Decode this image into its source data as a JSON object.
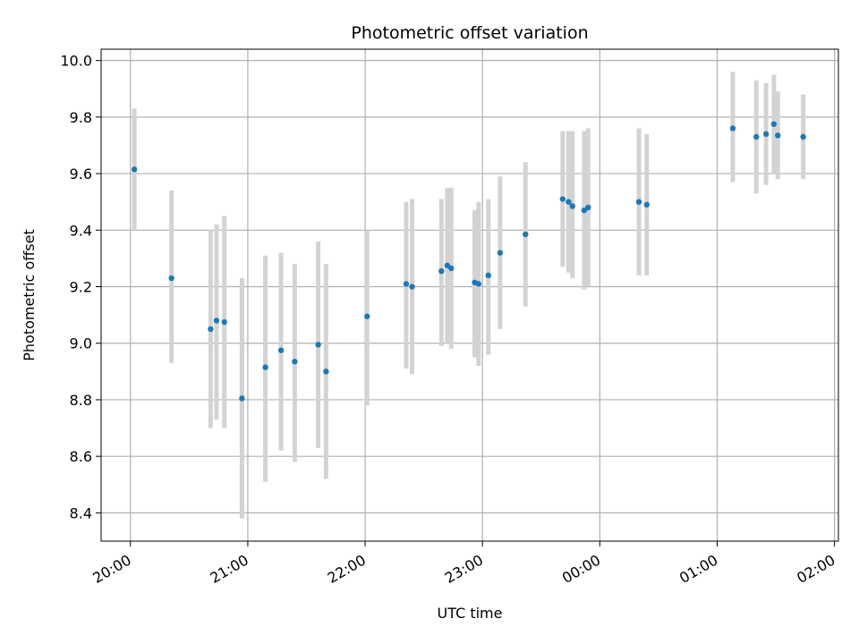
{
  "chart_data": {
    "type": "scatter",
    "title": "Photometric offset variation",
    "xlabel": "UTC time",
    "ylabel": "Photometric offset",
    "grid": true,
    "x_ticks": [
      "20:00",
      "21:00",
      "22:00",
      "23:00",
      "00:00",
      "01:00",
      "02:00"
    ],
    "x_tick_minutes": [
      0,
      60,
      120,
      180,
      240,
      300,
      360
    ],
    "xlim_minutes": [
      -15,
      362
    ],
    "y_ticks": [
      "8.4",
      "8.6",
      "8.8",
      "9.0",
      "9.2",
      "9.4",
      "9.6",
      "9.8",
      "10.0"
    ],
    "y_tick_values": [
      8.4,
      8.6,
      8.8,
      9.0,
      9.2,
      9.4,
      9.6,
      9.8,
      10.0
    ],
    "ylim": [
      8.3,
      10.04
    ],
    "colors": {
      "points": "#1f77b4",
      "errorbars": "#d3d3d3",
      "grid": "#b0b0b0"
    },
    "series": [
      {
        "points": [
          {
            "t": "20:02",
            "y": 9.615,
            "lo": 9.4,
            "hi": 9.83
          },
          {
            "t": "20:21",
            "y": 9.23,
            "lo": 8.93,
            "hi": 9.54
          },
          {
            "t": "20:41",
            "y": 9.05,
            "lo": 8.7,
            "hi": 9.4
          },
          {
            "t": "20:44",
            "y": 9.08,
            "lo": 8.73,
            "hi": 9.42
          },
          {
            "t": "20:48",
            "y": 9.075,
            "lo": 8.7,
            "hi": 9.45
          },
          {
            "t": "20:57",
            "y": 8.805,
            "lo": 8.38,
            "hi": 9.23
          },
          {
            "t": "21:09",
            "y": 8.915,
            "lo": 8.51,
            "hi": 9.31
          },
          {
            "t": "21:17",
            "y": 8.975,
            "lo": 8.62,
            "hi": 9.32
          },
          {
            "t": "21:24",
            "y": 8.935,
            "lo": 8.58,
            "hi": 9.28
          },
          {
            "t": "21:36",
            "y": 8.995,
            "lo": 8.63,
            "hi": 9.36
          },
          {
            "t": "21:40",
            "y": 8.9,
            "lo": 8.52,
            "hi": 9.28
          },
          {
            "t": "22:01",
            "y": 9.095,
            "lo": 8.78,
            "hi": 9.4
          },
          {
            "t": "22:21",
            "y": 9.21,
            "lo": 8.91,
            "hi": 9.5
          },
          {
            "t": "22:24",
            "y": 9.2,
            "lo": 8.89,
            "hi": 9.51
          },
          {
            "t": "22:39",
            "y": 9.255,
            "lo": 8.99,
            "hi": 9.51
          },
          {
            "t": "22:42",
            "y": 9.275,
            "lo": 9.0,
            "hi": 9.55
          },
          {
            "t": "22:44",
            "y": 9.265,
            "lo": 8.98,
            "hi": 9.55
          },
          {
            "t": "22:56",
            "y": 9.215,
            "lo": 8.95,
            "hi": 9.47
          },
          {
            "t": "22:58",
            "y": 9.21,
            "lo": 8.92,
            "hi": 9.5
          },
          {
            "t": "23:03",
            "y": 9.24,
            "lo": 8.96,
            "hi": 9.51
          },
          {
            "t": "23:09",
            "y": 9.32,
            "lo": 9.05,
            "hi": 9.59
          },
          {
            "t": "23:22",
            "y": 9.385,
            "lo": 9.13,
            "hi": 9.64
          },
          {
            "t": "23:41",
            "y": 9.51,
            "lo": 9.27,
            "hi": 9.75
          },
          {
            "t": "23:44",
            "y": 9.5,
            "lo": 9.25,
            "hi": 9.75
          },
          {
            "t": "23:46",
            "y": 9.485,
            "lo": 9.23,
            "hi": 9.75
          },
          {
            "t": "23:52",
            "y": 9.47,
            "lo": 9.19,
            "hi": 9.75
          },
          {
            "t": "23:54",
            "y": 9.48,
            "lo": 9.2,
            "hi": 9.76
          },
          {
            "t": "00:20",
            "y": 9.5,
            "lo": 9.24,
            "hi": 9.76
          },
          {
            "t": "00:24",
            "y": 9.49,
            "lo": 9.24,
            "hi": 9.74
          },
          {
            "t": "01:08",
            "y": 9.76,
            "lo": 9.57,
            "hi": 9.96
          },
          {
            "t": "01:20",
            "y": 9.73,
            "lo": 9.53,
            "hi": 9.93
          },
          {
            "t": "01:25",
            "y": 9.74,
            "lo": 9.56,
            "hi": 9.92
          },
          {
            "t": "01:29",
            "y": 9.775,
            "lo": 9.6,
            "hi": 9.95
          },
          {
            "t": "01:31",
            "y": 9.735,
            "lo": 9.58,
            "hi": 9.89
          },
          {
            "t": "01:44",
            "y": 9.73,
            "lo": 9.58,
            "hi": 9.88
          }
        ]
      }
    ]
  }
}
